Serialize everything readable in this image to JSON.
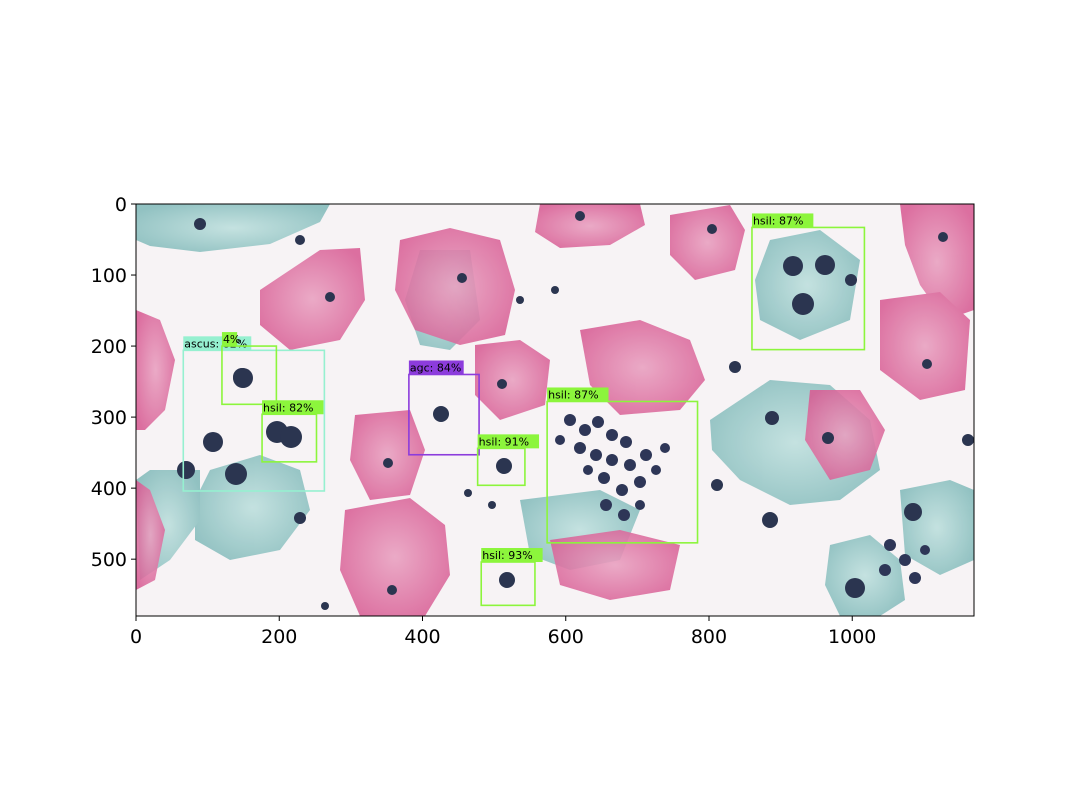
{
  "axes": {
    "x_ticks": [
      "0",
      "200",
      "400",
      "600",
      "800",
      "1000"
    ],
    "y_ticks": [
      "0",
      "100",
      "200",
      "300",
      "400",
      "500"
    ],
    "x_range": [
      0,
      1170
    ],
    "y_range": [
      580,
      0
    ],
    "grid": false
  },
  "colors": {
    "hsil": "#8cf53c",
    "ascus": "#96f0d0",
    "agc": "#8c3cdc",
    "axis": "#000000",
    "background": "#f6f2f4",
    "pink_cell": "#e27aa8",
    "blue_cell": "#9ccac8",
    "nucleus": "#2b3550"
  },
  "detections": [
    {
      "label": "hsil: 87%",
      "cls": "hsil",
      "x1": 860,
      "y1": 33,
      "x2": 1017,
      "y2": 205
    },
    {
      "label": "ascus: 82%",
      "cls": "ascus",
      "x1": 66,
      "y1": 206,
      "x2": 263,
      "y2": 404
    },
    {
      "label": "4%",
      "cls": "hsil",
      "x1": 120,
      "y1": 200,
      "x2": 196,
      "y2": 282
    },
    {
      "label": "hsil: 82%",
      "cls": "hsil",
      "x1": 176,
      "y1": 296,
      "x2": 252,
      "y2": 363
    },
    {
      "label": "agc: 84%",
      "cls": "agc",
      "x1": 381,
      "y1": 240,
      "x2": 479,
      "y2": 353
    },
    {
      "label": "hsil: 91%",
      "cls": "hsil",
      "x1": 477,
      "y1": 344,
      "x2": 543,
      "y2": 396
    },
    {
      "label": "hsil: 87%",
      "cls": "hsil",
      "x1": 574,
      "y1": 278,
      "x2": 784,
      "y2": 477
    },
    {
      "label": "hsil: 93%",
      "cls": "hsil",
      "x1": 482,
      "y1": 504,
      "x2": 557,
      "y2": 565
    }
  ]
}
